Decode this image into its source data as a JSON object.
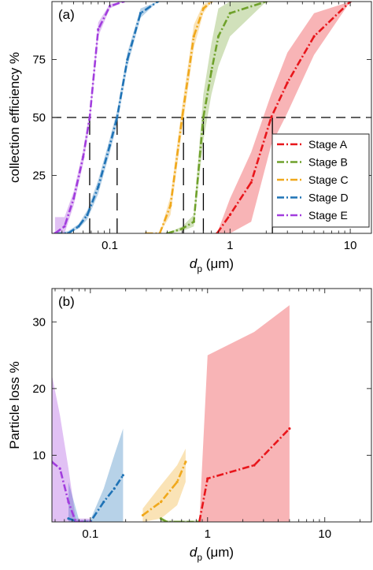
{
  "chart_data": [
    {
      "type": "line",
      "panel_label": "(a)",
      "xlabel_main": "d",
      "xlabel_sub": "p",
      "xlabel_unit": " (μm)",
      "ylabel": "collection efficiency %",
      "xscale": "log",
      "xlim": [
        0.033,
        15
      ],
      "ylim": [
        0,
        100
      ],
      "xticks": [
        {
          "v": 0.1,
          "label": "0.1"
        },
        {
          "v": 1,
          "label": "1"
        },
        {
          "v": 10,
          "label": "10"
        }
      ],
      "yticks": [
        {
          "v": 25,
          "label": "25"
        },
        {
          "v": 50,
          "label": "50"
        },
        {
          "v": 75,
          "label": "75"
        }
      ],
      "reference_line_y": 50,
      "cutoff_d50": [
        0.068,
        0.115,
        0.41,
        0.6,
        2.25
      ],
      "legend_position": "lower-right",
      "series": [
        {
          "name": "Stage A",
          "color": "#e8161b",
          "x": [
            0.78,
            1.0,
            1.5,
            2.2,
            3.0,
            5.0,
            10.0
          ],
          "y": [
            0,
            8,
            22,
            50,
            65,
            85,
            100
          ],
          "lower": [
            0,
            0,
            5,
            38,
            52,
            77,
            100
          ],
          "upper": [
            0,
            15,
            35,
            60,
            78,
            95,
            100
          ]
        },
        {
          "name": "Stage B",
          "color": "#6fa12b",
          "x": [
            0.3,
            0.4,
            0.5,
            0.6,
            0.7,
            0.8,
            1.0,
            2.0
          ],
          "y": [
            0,
            2,
            5,
            50,
            70,
            85,
            95,
            100
          ],
          "lower": [
            0,
            1,
            3,
            40,
            60,
            72,
            85,
            100
          ],
          "upper": [
            0,
            3,
            8,
            60,
            82,
            97,
            100,
            100
          ]
        },
        {
          "name": "Stage C",
          "color": "#f0a81c",
          "x": [
            0.2,
            0.26,
            0.32,
            0.4,
            0.5,
            0.6,
            0.7
          ],
          "y": [
            0,
            0,
            12,
            50,
            85,
            97,
            100
          ],
          "lower": [
            0,
            0,
            8,
            45,
            80,
            95,
            100
          ],
          "upper": [
            0,
            0,
            16,
            55,
            90,
            99,
            100
          ]
        },
        {
          "name": "Stage D",
          "color": "#1f73b6",
          "x": [
            0.035,
            0.045,
            0.055,
            0.065,
            0.08,
            0.1,
            0.115,
            0.14,
            0.18,
            0.25
          ],
          "y": [
            0,
            0,
            3,
            8,
            20,
            38,
            50,
            75,
            95,
            100
          ],
          "lower": [
            0,
            0,
            2,
            6,
            17,
            35,
            47,
            72,
            93,
            100
          ],
          "upper": [
            0,
            1,
            4,
            10,
            23,
            41,
            53,
            78,
            97,
            100
          ]
        },
        {
          "name": "Stage E",
          "color": "#a23dde",
          "x": [
            0.035,
            0.042,
            0.05,
            0.06,
            0.068,
            0.08,
            0.1,
            0.13
          ],
          "y": [
            0,
            3,
            15,
            33,
            50,
            88,
            98,
            100
          ],
          "lower": [
            0,
            0,
            12,
            30,
            47,
            85,
            97,
            100
          ],
          "upper": [
            7,
            7,
            18,
            36,
            53,
            91,
            99,
            100
          ]
        }
      ]
    },
    {
      "type": "line",
      "panel_label": "(b)",
      "xlabel_main": "d",
      "xlabel_sub": "p",
      "xlabel_unit": " (μm)",
      "ylabel": "Particle loss %",
      "xscale": "log",
      "xlim": [
        0.047,
        25
      ],
      "ylim": [
        0,
        35
      ],
      "xticks": [
        {
          "v": 0.1,
          "label": "0.1"
        },
        {
          "v": 1,
          "label": "1"
        },
        {
          "v": 10,
          "label": "10"
        }
      ],
      "yticks": [
        {
          "v": 10,
          "label": "10"
        },
        {
          "v": 20,
          "label": "20"
        },
        {
          "v": 30,
          "label": "30"
        }
      ],
      "series": [
        {
          "name": "Stage A",
          "color": "#e8161b",
          "x": [
            0.85,
            1.0,
            2.5,
            5.0
          ],
          "y": [
            0,
            6.5,
            8.5,
            14
          ],
          "lower": [
            0,
            0,
            0,
            0
          ],
          "upper": [
            0,
            25,
            28.5,
            32.5
          ]
        },
        {
          "name": "Stage B",
          "color": "#6fa12b",
          "x": [
            0.4,
            0.45,
            0.6,
            0.82
          ],
          "y": [
            0.5,
            0,
            0,
            0
          ],
          "lower": [
            0,
            0,
            0,
            0
          ],
          "upper": [
            0.7,
            0.2,
            0.2,
            0.2
          ]
        },
        {
          "name": "Stage C",
          "color": "#f0a81c",
          "x": [
            0.28,
            0.4,
            0.55,
            0.65
          ],
          "y": [
            1,
            3,
            6,
            9
          ],
          "lower": [
            0,
            0.5,
            2.5,
            6
          ],
          "upper": [
            2,
            5.5,
            8.5,
            11
          ]
        },
        {
          "name": "Stage D",
          "color": "#1f73b6",
          "x": [
            0.065,
            0.08,
            0.1,
            0.13,
            0.16,
            0.19
          ],
          "y": [
            0.5,
            0,
            0,
            3,
            5,
            7
          ],
          "lower": [
            0,
            0,
            0,
            0,
            0,
            0
          ],
          "upper": [
            6,
            0.3,
            0.3,
            5,
            10,
            14
          ]
        },
        {
          "name": "Stage E",
          "color": "#a23dde",
          "x": [
            0.047,
            0.055,
            0.065,
            0.075,
            0.085,
            0.1
          ],
          "y": [
            9,
            8,
            3,
            0,
            0,
            0
          ],
          "lower": [
            0,
            0,
            0,
            0,
            0,
            0
          ],
          "upper": [
            22,
            16,
            8,
            0.5,
            0.5,
            0.5
          ]
        }
      ]
    }
  ]
}
